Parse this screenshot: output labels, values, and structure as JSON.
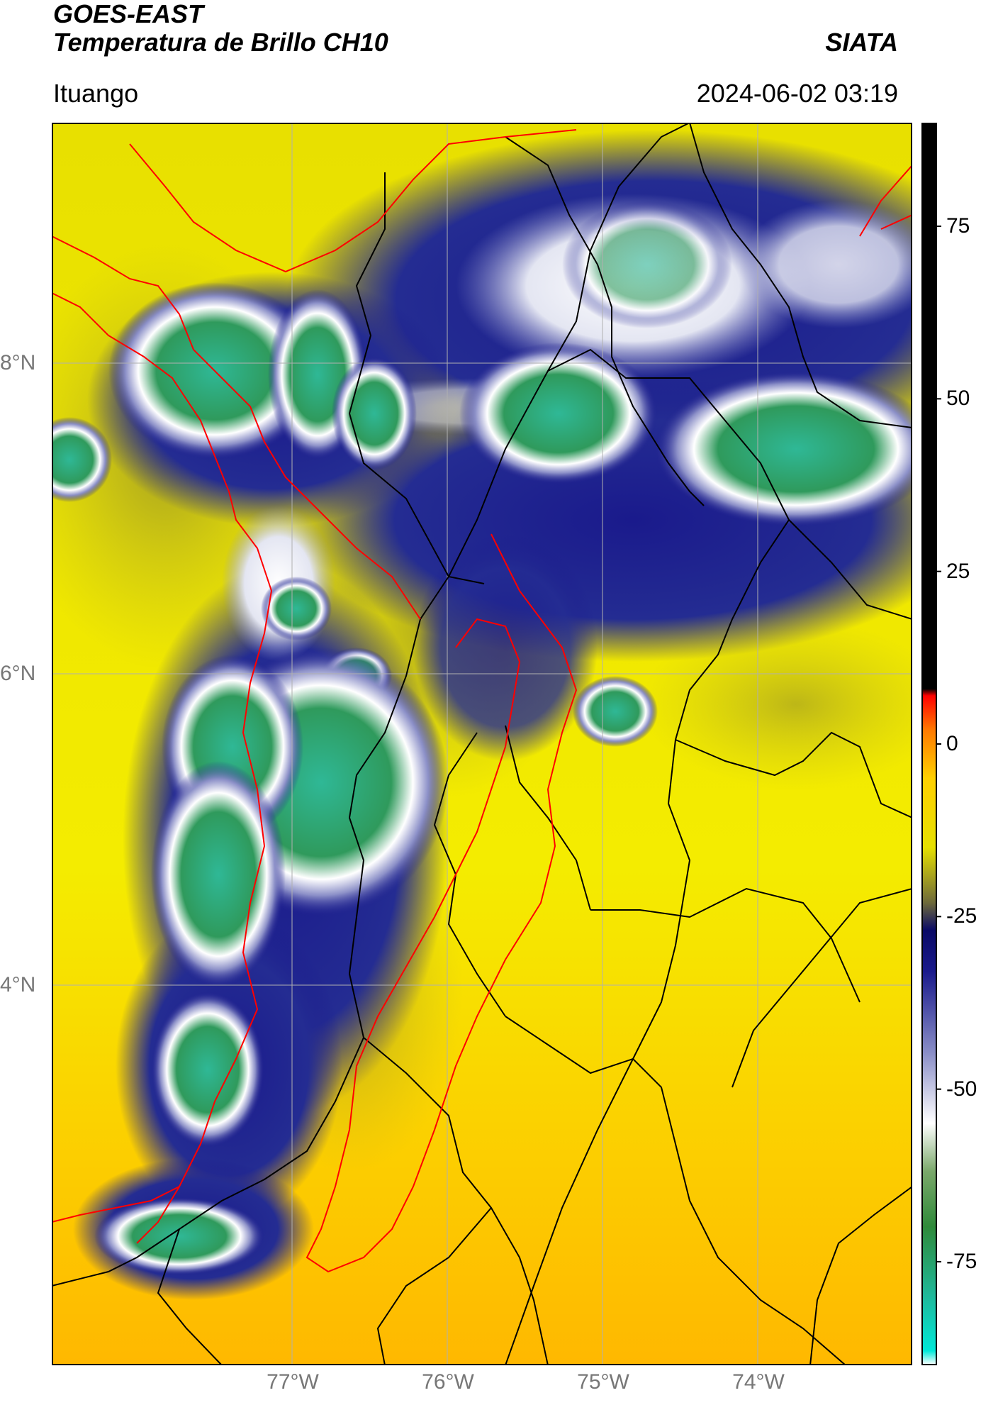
{
  "header": {
    "title_line1": "GOES-EAST",
    "title_line2": "Temperatura de Brillo CH10",
    "org": "SIATA",
    "location": "Ituango",
    "datetime": "2024-06-02 03:19"
  },
  "map": {
    "lon_ticks": [
      "77°W",
      "76°W",
      "75°W",
      "74°W"
    ],
    "lat_ticks": [
      "8°N",
      "6°N",
      "4°N"
    ],
    "lon_range": [
      -78.55,
      -73.0
    ],
    "lat_range": [
      1.8,
      9.8
    ],
    "colors": {
      "warm_fill": "#eadf00",
      "cold_blue": "#1a1a8c",
      "cloud_top": "#2f9a5c",
      "province_border": "#000000",
      "highlight_border": "#ff0000",
      "gridline": "#b0b0b0"
    }
  },
  "colorbar": {
    "ticks": [
      "75",
      "50",
      "25",
      "0",
      "-25",
      "-50",
      "-75"
    ],
    "tick_values": [
      75,
      50,
      25,
      0,
      -25,
      -50,
      -75
    ],
    "range": [
      -90,
      90
    ],
    "stops": [
      {
        "v": -90,
        "c": "#ffffff"
      },
      {
        "v": -88,
        "c": "#00e8d8"
      },
      {
        "v": -80,
        "c": "#1fb89a"
      },
      {
        "v": -70,
        "c": "#2f8a3a"
      },
      {
        "v": -62,
        "c": "#7aa86a"
      },
      {
        "v": -55,
        "c": "#ffffff"
      },
      {
        "v": -45,
        "c": "#8c90c8"
      },
      {
        "v": -33,
        "c": "#1a1a8c"
      },
      {
        "v": -27,
        "c": "#0a0a66"
      },
      {
        "v": -23,
        "c": "#6e6a3a"
      },
      {
        "v": -15,
        "c": "#e6e000"
      },
      {
        "v": -5,
        "c": "#ffd000"
      },
      {
        "v": 2,
        "c": "#ff7a00"
      },
      {
        "v": 7,
        "c": "#ff0000"
      },
      {
        "v": 8,
        "c": "#000000"
      },
      {
        "v": 90,
        "c": "#000000"
      }
    ]
  }
}
